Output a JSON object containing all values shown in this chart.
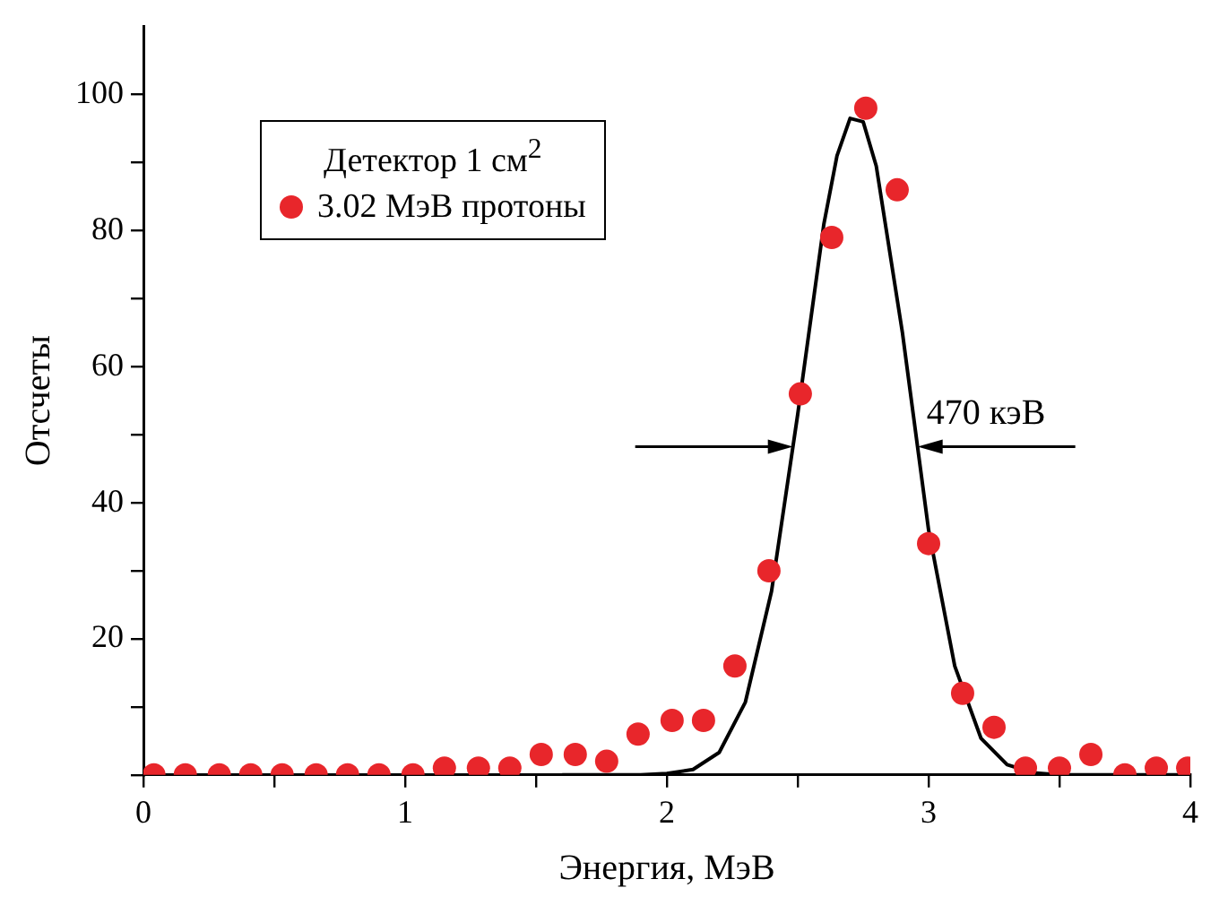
{
  "chart_data": {
    "type": "scatter",
    "xlabel": "Энергия, МэВ",
    "ylabel": "Отсчеты",
    "legend_title": "Детектор 1 см$^{2}$",
    "legend": "top left",
    "marker": "circle",
    "grid": false,
    "xlim": [
      0,
      4
    ],
    "xticks": [
      0,
      {
        "value": 0.5,
        "label": null
      },
      1,
      {
        "value": 1.5,
        "label": null
      },
      2,
      {
        "value": 2.5,
        "label": null
      },
      3,
      {
        "value": 3.5,
        "label": null
      },
      4
    ],
    "ylim": [
      0,
      110
    ],
    "yticks": [
      {
        "value": 0,
        "label": null
      },
      {
        "value": 10,
        "label": null
      },
      20,
      {
        "value": 30,
        "label": null
      },
      40,
      {
        "value": 50,
        "label": null
      },
      60,
      {
        "value": 70,
        "label": null
      },
      80,
      {
        "value": 90,
        "label": null
      },
      100
    ],
    "series": [
      {
        "name": "3.02 МэВ протоны",
        "color": "#e8262b",
        "x": [
          0.04,
          0.16,
          0.29,
          0.41,
          0.53,
          0.66,
          0.78,
          0.9,
          1.03,
          1.15,
          1.28,
          1.4,
          1.52,
          1.65,
          1.77,
          1.89,
          2.02,
          2.14,
          2.26,
          2.39,
          2.51,
          2.63,
          2.76,
          2.88,
          3.0,
          3.13,
          3.25,
          3.37,
          3.5,
          3.62,
          3.75,
          3.87,
          3.99
        ],
        "values": [
          0,
          0,
          0,
          0,
          0,
          0,
          0,
          0,
          0,
          1,
          1,
          1,
          3,
          3,
          2,
          6,
          8,
          8,
          16,
          30,
          56,
          79,
          98,
          86,
          34,
          12,
          7,
          1,
          1,
          3,
          0,
          1,
          1
        ]
      },
      {
        "type": "line",
        "color": "#000000",
        "marker": "none",
        "x": [
          1.6,
          1.8,
          1.9,
          2.0,
          2.1,
          2.2,
          2.3,
          2.4,
          2.5,
          2.6,
          2.65,
          2.7,
          2.75,
          2.8,
          2.9,
          3.0,
          3.1,
          3.2,
          3.3,
          3.4,
          3.5,
          3.6,
          3.8,
          4.0
        ],
        "values": [
          0,
          0,
          0,
          0.2,
          0.8,
          3.3,
          10.7,
          27,
          53,
          81,
          91,
          96.5,
          96,
          89.5,
          65,
          36,
          16,
          5.4,
          1.5,
          0.3,
          0,
          0,
          0,
          0
        ]
      }
    ],
    "annotations": [
      "470 кэВ"
    ]
  }
}
